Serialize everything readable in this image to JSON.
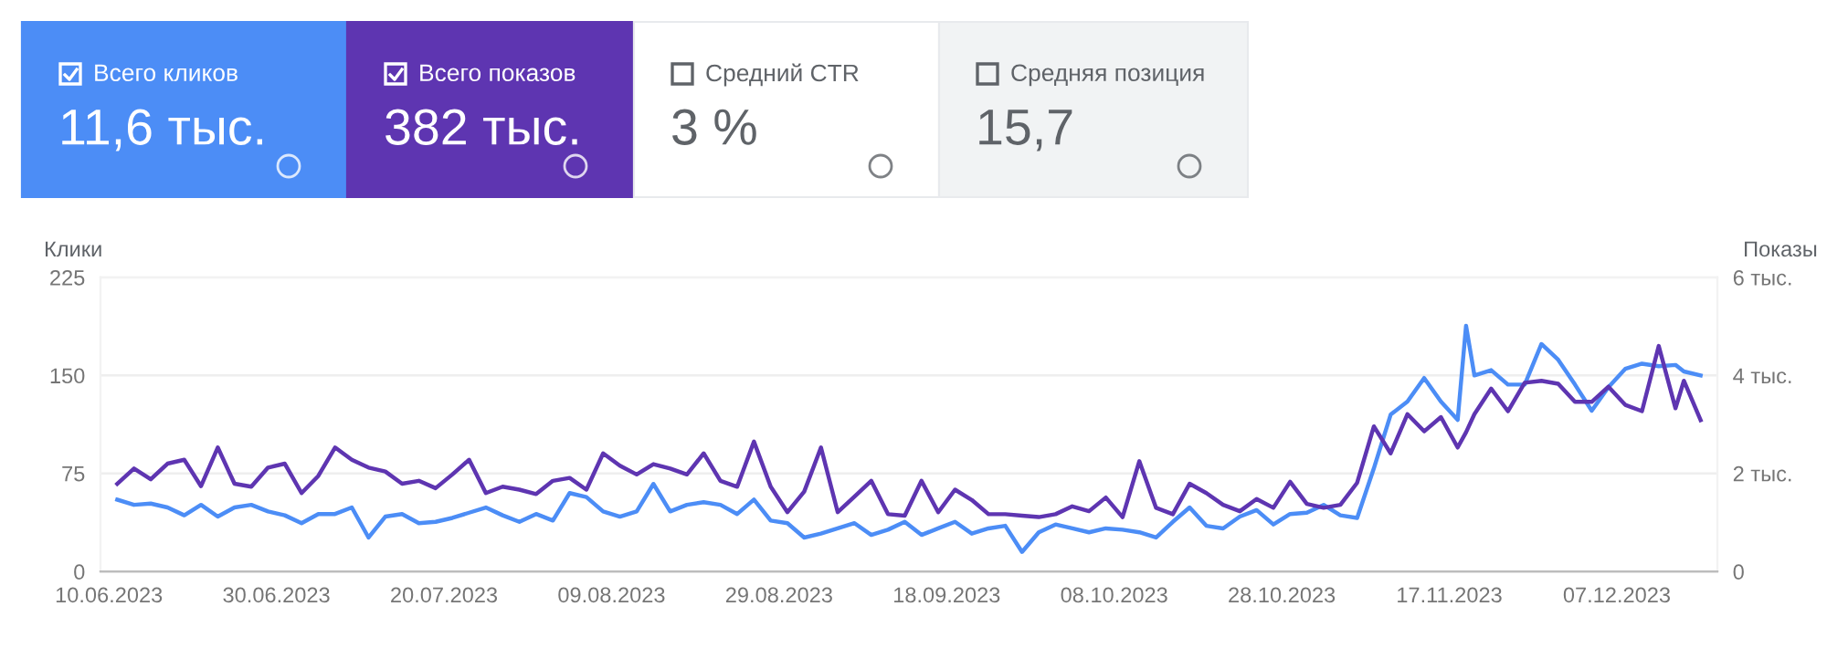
{
  "chart_data": [
    {
      "type": "other",
      "annotations": [
        "Всего кликов",
        "11,6 тыс.",
        "Всего показов",
        "382 тыс.",
        "Средний CTR",
        "3 %",
        "Средняя позиция",
        "15,7"
      ]
    },
    {
      "type": "line",
      "ylabel": "Клики",
      "y2label": "Показы",
      "grid": "y",
      "line_style": "solid",
      "x": [
        "2023-06-11",
        "2023-06-13",
        "2023-06-15",
        "2023-06-17",
        "2023-06-19",
        "2023-06-21",
        "2023-06-23",
        "2023-06-25",
        "2023-06-27",
        "2023-06-29",
        "2023-07-01",
        "2023-07-03",
        "2023-07-05",
        "2023-07-07",
        "2023-07-09",
        "2023-07-11",
        "2023-07-13",
        "2023-07-15",
        "2023-07-17",
        "2023-07-19",
        "2023-07-21",
        "2023-07-23",
        "2023-07-25",
        "2023-07-27",
        "2023-07-29",
        "2023-07-31",
        "2023-08-02",
        "2023-08-04",
        "2023-08-06",
        "2023-08-08",
        "2023-08-10",
        "2023-08-12",
        "2023-08-14",
        "2023-08-16",
        "2023-08-18",
        "2023-08-20",
        "2023-08-22",
        "2023-08-24",
        "2023-08-26",
        "2023-08-28",
        "2023-08-30",
        "2023-09-01",
        "2023-09-03",
        "2023-09-05",
        "2023-09-07",
        "2023-09-09",
        "2023-09-11",
        "2023-09-13",
        "2023-09-15",
        "2023-09-17",
        "2023-09-19",
        "2023-09-21",
        "2023-09-23",
        "2023-09-25",
        "2023-09-27",
        "2023-09-29",
        "2023-10-01",
        "2023-10-03",
        "2023-10-05",
        "2023-10-07",
        "2023-10-09",
        "2023-10-11",
        "2023-10-13",
        "2023-10-15",
        "2023-10-17",
        "2023-10-19",
        "2023-10-21",
        "2023-10-23",
        "2023-10-25",
        "2023-10-27",
        "2023-10-29",
        "2023-10-31",
        "2023-11-02",
        "2023-11-04",
        "2023-11-06",
        "2023-11-08",
        "2023-11-10",
        "2023-11-12",
        "2023-11-14",
        "2023-11-16",
        "2023-11-18",
        "2023-11-19",
        "2023-11-20",
        "2023-11-22",
        "2023-11-24",
        "2023-11-26",
        "2023-11-28",
        "2023-11-30",
        "2023-12-02",
        "2023-12-04",
        "2023-12-06",
        "2023-12-08",
        "2023-12-10",
        "2023-12-12",
        "2023-12-14",
        "2023-12-15",
        "2023-12-17"
      ],
      "xlim": [
        "2023-06-09",
        "2023-12-19"
      ],
      "xticks": [
        {
          "value": "2023-06-10",
          "label": "10.06.2023"
        },
        {
          "value": "2023-06-30",
          "label": "30.06.2023"
        },
        {
          "value": "2023-07-20",
          "label": "20.07.2023"
        },
        {
          "value": "2023-08-09",
          "label": "09.08.2023"
        },
        {
          "value": "2023-08-29",
          "label": "29.08.2023"
        },
        {
          "value": "2023-09-18",
          "label": "18.09.2023"
        },
        {
          "value": "2023-10-08",
          "label": "08.10.2023"
        },
        {
          "value": "2023-10-28",
          "label": "28.10.2023"
        },
        {
          "value": "2023-11-17",
          "label": "17.11.2023"
        },
        {
          "value": "2023-12-07",
          "label": "07.12.2023"
        }
      ],
      "ylim": [
        0,
        225
      ],
      "yticks": [
        0,
        75,
        150,
        225
      ],
      "y2lim": [
        0,
        6
      ],
      "y2ticks": [
        0,
        {
          "value": 2,
          "label": "2 тыс."
        },
        {
          "value": 4,
          "label": "4 тыс."
        },
        {
          "value": 6,
          "label": "6 тыс."
        }
      ],
      "series": [
        {
          "color": "#4c8df6",
          "values": [
            55,
            51,
            52,
            49,
            43,
            51,
            42,
            49,
            51,
            46,
            43,
            37,
            44,
            44,
            49,
            26,
            42,
            44,
            37,
            38,
            41,
            45,
            49,
            43,
            38,
            44,
            39,
            60,
            57,
            46,
            42,
            46,
            67,
            46,
            51,
            53,
            51,
            44,
            55,
            39,
            37,
            26,
            29,
            33,
            37,
            28,
            32,
            38,
            28,
            33,
            38,
            29,
            33,
            35,
            15,
            30,
            36,
            33,
            30,
            33,
            32,
            30,
            26,
            38,
            49,
            35,
            33,
            42,
            47,
            36,
            44,
            45,
            51,
            43,
            41,
            79,
            120,
            130,
            148,
            130,
            116,
            188,
            150,
            154,
            143,
            143,
            174,
            162,
            143,
            123,
            141,
            155,
            159,
            157,
            158,
            153,
            150
          ]
        },
        {
          "color": "#5e35b1",
          "axis": "y2",
          "values": [
            1.79,
            2.1,
            1.88,
            2.2,
            2.28,
            1.74,
            2.53,
            1.79,
            1.73,
            2.12,
            2.2,
            1.6,
            1.95,
            2.53,
            2.28,
            2.12,
            2.04,
            1.79,
            1.85,
            1.7,
            1.98,
            2.28,
            1.6,
            1.73,
            1.67,
            1.58,
            1.85,
            1.91,
            1.67,
            2.41,
            2.16,
            1.98,
            2.19,
            2.1,
            1.98,
            2.41,
            1.85,
            1.73,
            2.65,
            1.73,
            1.21,
            1.63,
            2.53,
            1.21,
            1.53,
            1.85,
            1.17,
            1.14,
            1.85,
            1.21,
            1.67,
            1.46,
            1.17,
            1.17,
            1.14,
            1.11,
            1.17,
            1.33,
            1.23,
            1.51,
            1.11,
            2.25,
            1.3,
            1.17,
            1.79,
            1.6,
            1.36,
            1.23,
            1.48,
            1.3,
            1.83,
            1.38,
            1.3,
            1.36,
            1.81,
            2.96,
            2.41,
            3.21,
            2.86,
            3.15,
            2.53,
            2.84,
            3.21,
            3.73,
            3.27,
            3.85,
            3.89,
            3.83,
            3.46,
            3.46,
            3.77,
            3.4,
            3.27,
            4.6,
            3.33,
            3.89,
            3.09
          ]
        }
      ]
    }
  ]
}
